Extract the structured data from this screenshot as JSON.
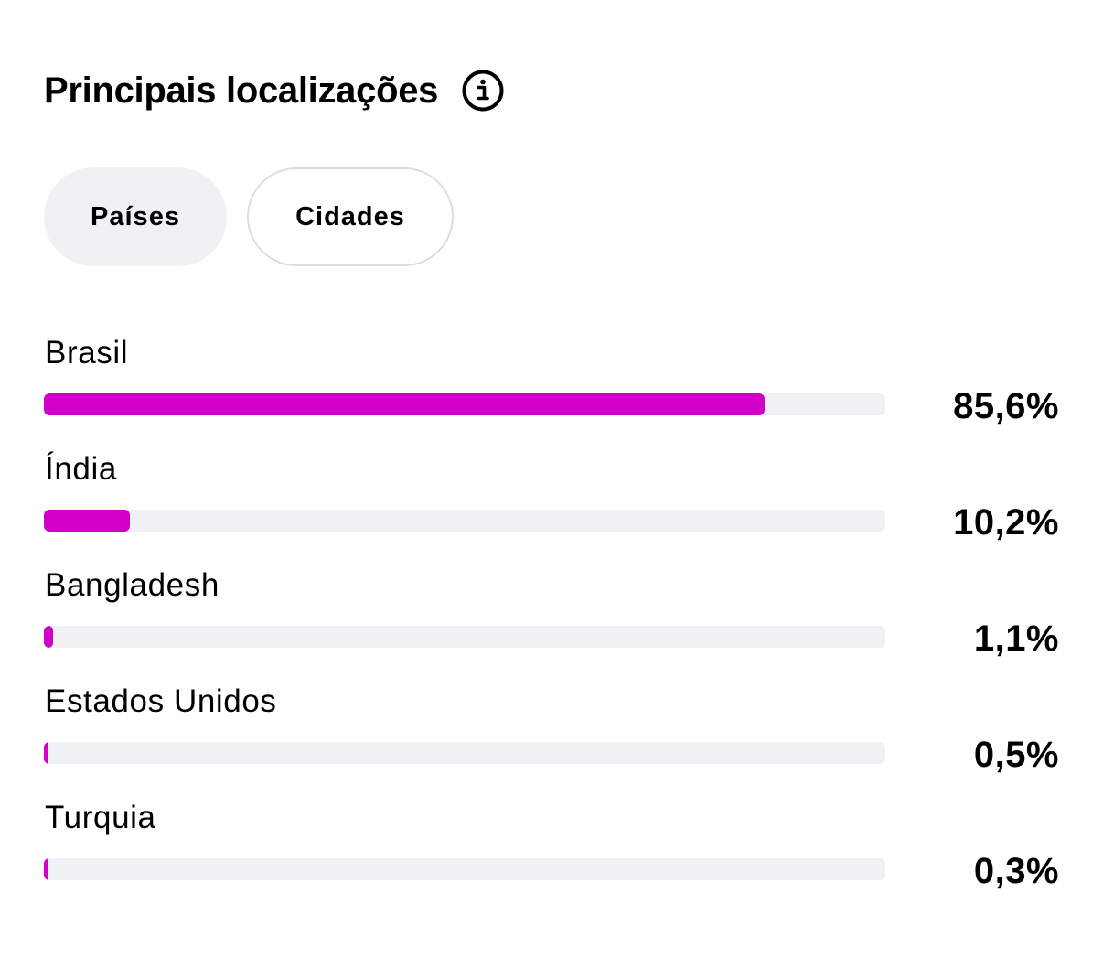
{
  "header": {
    "title": "Principais localizações",
    "info_icon": "info-circle-icon"
  },
  "tabs": [
    {
      "label": "Países",
      "active": true
    },
    {
      "label": "Cidades",
      "active": false
    }
  ],
  "colors": {
    "accent": "#d100c8",
    "track": "#eff1f4",
    "text": "#000000"
  },
  "locations": [
    {
      "name": "Brasil",
      "value_label": "85,6%",
      "percent": 85.6
    },
    {
      "name": "Índia",
      "value_label": "10,2%",
      "percent": 10.2
    },
    {
      "name": "Bangladesh",
      "value_label": "1,1%",
      "percent": 1.1
    },
    {
      "name": "Estados Unidos",
      "value_label": "0,5%",
      "percent": 0.5
    },
    {
      "name": "Turquia",
      "value_label": "0,3%",
      "percent": 0.3
    }
  ]
}
